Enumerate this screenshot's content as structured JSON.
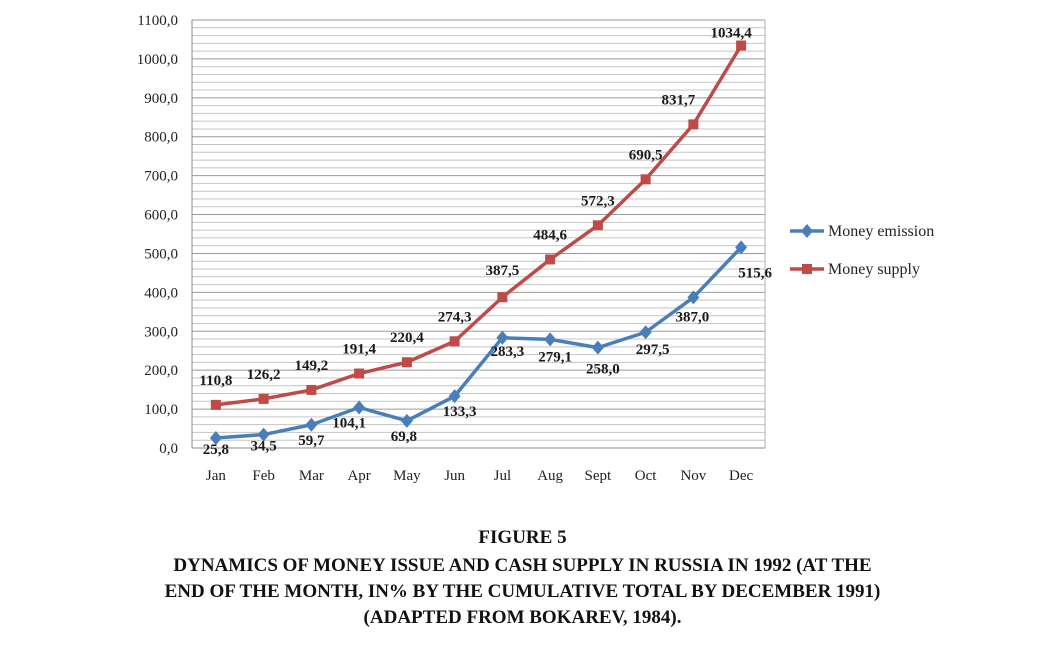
{
  "chart_data": {
    "type": "line",
    "categories": [
      "Jan",
      "Feb",
      "Mar",
      "Apr",
      "May",
      "Jun",
      "Jul",
      "Aug",
      "Sept",
      "Oct",
      "Nov",
      "Dec"
    ],
    "series": [
      {
        "name": "Money emission",
        "color": "#4a7ebb",
        "marker": "diamond",
        "values": [
          25.8,
          34.5,
          59.7,
          104.1,
          69.8,
          133.3,
          283.3,
          279.1,
          258.0,
          297.5,
          387.0,
          515.6
        ],
        "labels": [
          "25,8",
          "34,5",
          "59,7",
          "104,1",
          "69,8",
          "133,3",
          "283,3",
          "279,1",
          "258,0",
          "297,5",
          "387,0",
          "515,6"
        ]
      },
      {
        "name": "Money supply",
        "color": "#be4b48",
        "marker": "square",
        "values": [
          110.8,
          126.2,
          149.2,
          191.4,
          220.4,
          274.3,
          387.5,
          484.6,
          572.3,
          690.5,
          831.7,
          1034.4
        ],
        "labels": [
          "110,8",
          "126,2",
          "149,2",
          "191,4",
          "220,4",
          "274,3",
          "387,5",
          "484,6",
          "572,3",
          "690,5",
          "831,7",
          "1034,4"
        ]
      }
    ],
    "ylim": [
      0,
      1100
    ],
    "yticks": [
      "0,0",
      "100,0",
      "200,0",
      "300,0",
      "400,0",
      "500,0",
      "600,0",
      "700,0",
      "800,0",
      "900,0",
      "1000,0",
      "1100,0"
    ],
    "grid": true,
    "legend_position": "right"
  },
  "caption": {
    "figure_label": "FIGURE 5",
    "line1": "DYNAMICS OF MONEY ISSUE AND CASH SUPPLY IN RUSSIA IN 1992 (AT THE",
    "line2": "END OF THE MONTH, IN% BY THE CUMULATIVE TOTAL BY DECEMBER 1991)",
    "line3": "(ADAPTED FROM BOKAREV, 1984)."
  }
}
